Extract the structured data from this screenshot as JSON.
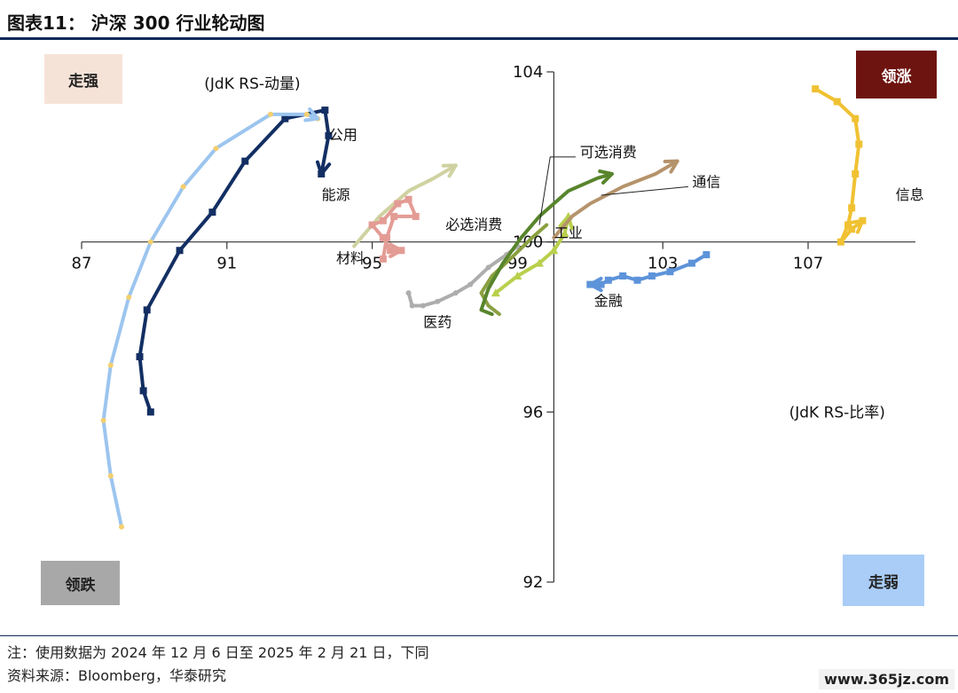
{
  "header": {
    "title": "图表11： 沪深 300 行业轮动图"
  },
  "quadrants": {
    "strong": "走强",
    "lead_up": "领涨",
    "lead_down": "领跌",
    "weak": "走弱"
  },
  "footer": {
    "note": "注：使用数据为 2024 年 12 月 6 日至 2025 年 2 月 21 日，下同",
    "source": "资料来源：Bloomberg，华泰研究",
    "watermark": "www.365jz.com"
  },
  "chart_data": {
    "type": "scatter",
    "xlabel": "(JdK RS-比率)",
    "ylabel": "(JdK RS-动量)",
    "x_range": [
      86,
      110
    ],
    "y_range": [
      92,
      104
    ],
    "x_ticks": [
      87,
      91,
      95,
      99,
      103,
      107
    ],
    "y_ticks": [
      104,
      100,
      96,
      92
    ],
    "grid": false,
    "legend": "none",
    "series": [
      {
        "name": "公用",
        "color": "#132f63",
        "marker": "square",
        "arrow": true,
        "points": [
          [
            88.9,
            96.0
          ],
          [
            88.7,
            96.5
          ],
          [
            88.6,
            97.3
          ],
          [
            88.8,
            98.4
          ],
          [
            89.7,
            99.8
          ],
          [
            90.6,
            100.7
          ],
          [
            91.5,
            101.9
          ],
          [
            92.6,
            102.9
          ],
          [
            93.7,
            103.1
          ],
          [
            93.8,
            102.5
          ],
          [
            93.6,
            101.6
          ]
        ]
      },
      {
        "name": "",
        "color": "#9cc5ef",
        "marker": "dot",
        "marker_color": "#f3cf6e",
        "arrow": true,
        "points": [
          [
            88.1,
            93.3
          ],
          [
            87.8,
            94.5
          ],
          [
            87.6,
            95.8
          ],
          [
            87.8,
            97.1
          ],
          [
            88.3,
            98.7
          ],
          [
            88.9,
            100.0
          ],
          [
            89.8,
            101.3
          ],
          [
            90.7,
            102.2
          ],
          [
            92.2,
            103.0
          ],
          [
            93.2,
            103.0
          ],
          [
            93.5,
            102.9
          ]
        ]
      },
      {
        "name": "材料",
        "color": "#cfd2a0",
        "marker": "none",
        "arrow": true,
        "points": [
          [
            94.5,
            99.9
          ],
          [
            95.2,
            100.6
          ],
          [
            96.0,
            101.2
          ],
          [
            96.7,
            101.5
          ],
          [
            97.3,
            101.8
          ]
        ]
      },
      {
        "name": "",
        "color": "#e39c95",
        "marker": "square",
        "arrow": true,
        "points": [
          [
            95.3,
            99.6
          ],
          [
            95.4,
            100.1
          ],
          [
            95.6,
            100.6
          ],
          [
            96.2,
            100.6
          ],
          [
            96.0,
            101.0
          ],
          [
            95.7,
            100.9
          ],
          [
            95.3,
            100.5
          ],
          [
            95.0,
            100.4
          ],
          [
            95.3,
            100.1
          ],
          [
            95.5,
            99.8
          ],
          [
            95.8,
            99.8
          ]
        ]
      },
      {
        "name": "医药",
        "color": "#adadad",
        "marker": "dot",
        "arrow": false,
        "points": [
          [
            96.0,
            98.8
          ],
          [
            96.1,
            98.5
          ],
          [
            96.4,
            98.5
          ],
          [
            96.8,
            98.6
          ],
          [
            97.3,
            98.8
          ],
          [
            97.7,
            99.0
          ],
          [
            98.2,
            99.4
          ],
          [
            98.7,
            99.7
          ],
          [
            99.0,
            99.9
          ]
        ]
      },
      {
        "name": "必选消费",
        "color": "#8aa040",
        "marker": "none",
        "arrow": false,
        "points": [
          [
            98.5,
            98.3
          ],
          [
            98.2,
            98.5
          ],
          [
            98.0,
            98.8
          ],
          [
            98.3,
            99.2
          ],
          [
            98.8,
            99.6
          ],
          [
            99.4,
            100.1
          ],
          [
            99.8,
            100.4
          ]
        ]
      },
      {
        "name": "可选消费",
        "color": "#58852c",
        "marker": "none",
        "arrow": true,
        "points": [
          [
            98.3,
            98.3
          ],
          [
            98.0,
            98.4
          ],
          [
            98.2,
            98.9
          ],
          [
            98.6,
            99.5
          ],
          [
            99.1,
            100.1
          ],
          [
            99.6,
            100.6
          ],
          [
            100.4,
            101.2
          ],
          [
            101.2,
            101.5
          ],
          [
            101.6,
            101.6
          ]
        ]
      },
      {
        "name": "工业",
        "color": "#b8d04c",
        "marker": "triangle",
        "arrow": true,
        "points": [
          [
            98.4,
            98.8
          ],
          [
            99.0,
            99.2
          ],
          [
            99.6,
            99.5
          ],
          [
            100.0,
            99.8
          ],
          [
            100.3,
            100.2
          ],
          [
            100.4,
            100.6
          ]
        ]
      },
      {
        "name": "通信",
        "color": "#b5936b",
        "marker": "none",
        "arrow": true,
        "points": [
          [
            100.0,
            100.1
          ],
          [
            100.5,
            100.6
          ],
          [
            101.0,
            100.9
          ],
          [
            101.9,
            101.3
          ],
          [
            102.8,
            101.6
          ],
          [
            103.4,
            101.9
          ]
        ]
      },
      {
        "name": "金融",
        "color": "#5d93d9",
        "marker": "square",
        "arrow": true,
        "points": [
          [
            104.2,
            99.7
          ],
          [
            103.8,
            99.5
          ],
          [
            103.2,
            99.3
          ],
          [
            102.7,
            99.2
          ],
          [
            102.3,
            99.1
          ],
          [
            101.9,
            99.2
          ],
          [
            101.5,
            99.1
          ],
          [
            101.3,
            99.0
          ],
          [
            101.0,
            99.0
          ]
        ]
      },
      {
        "name": "信息",
        "color": "#f0c132",
        "marker": "square",
        "arrow": true,
        "points": [
          [
            107.2,
            103.6
          ],
          [
            107.8,
            103.3
          ],
          [
            108.3,
            102.9
          ],
          [
            108.4,
            102.3
          ],
          [
            108.3,
            101.6
          ],
          [
            108.2,
            100.8
          ],
          [
            108.1,
            100.4
          ],
          [
            107.9,
            100.0
          ],
          [
            108.2,
            100.3
          ],
          [
            108.5,
            100.5
          ]
        ]
      }
    ],
    "labels": [
      {
        "text": "公用",
        "x": 94.2,
        "y": 102.4
      },
      {
        "text": "能源",
        "x": 94.0,
        "y": 101.0
      },
      {
        "text": "材料",
        "x": 94.4,
        "y": 99.5
      },
      {
        "text": "医药",
        "x": 96.8,
        "y": 98.0
      },
      {
        "text": "必选消费",
        "x": 97.8,
        "y": 100.3
      },
      {
        "text": "可选消费",
        "x": 101.5,
        "y": 102.0
      },
      {
        "text": "工业",
        "x": 100.4,
        "y": 100.1
      },
      {
        "text": "通信",
        "x": 104.2,
        "y": 101.3
      },
      {
        "text": "金融",
        "x": 101.5,
        "y": 98.5
      },
      {
        "text": "信息",
        "x": 109.8,
        "y": 101.0
      }
    ]
  }
}
